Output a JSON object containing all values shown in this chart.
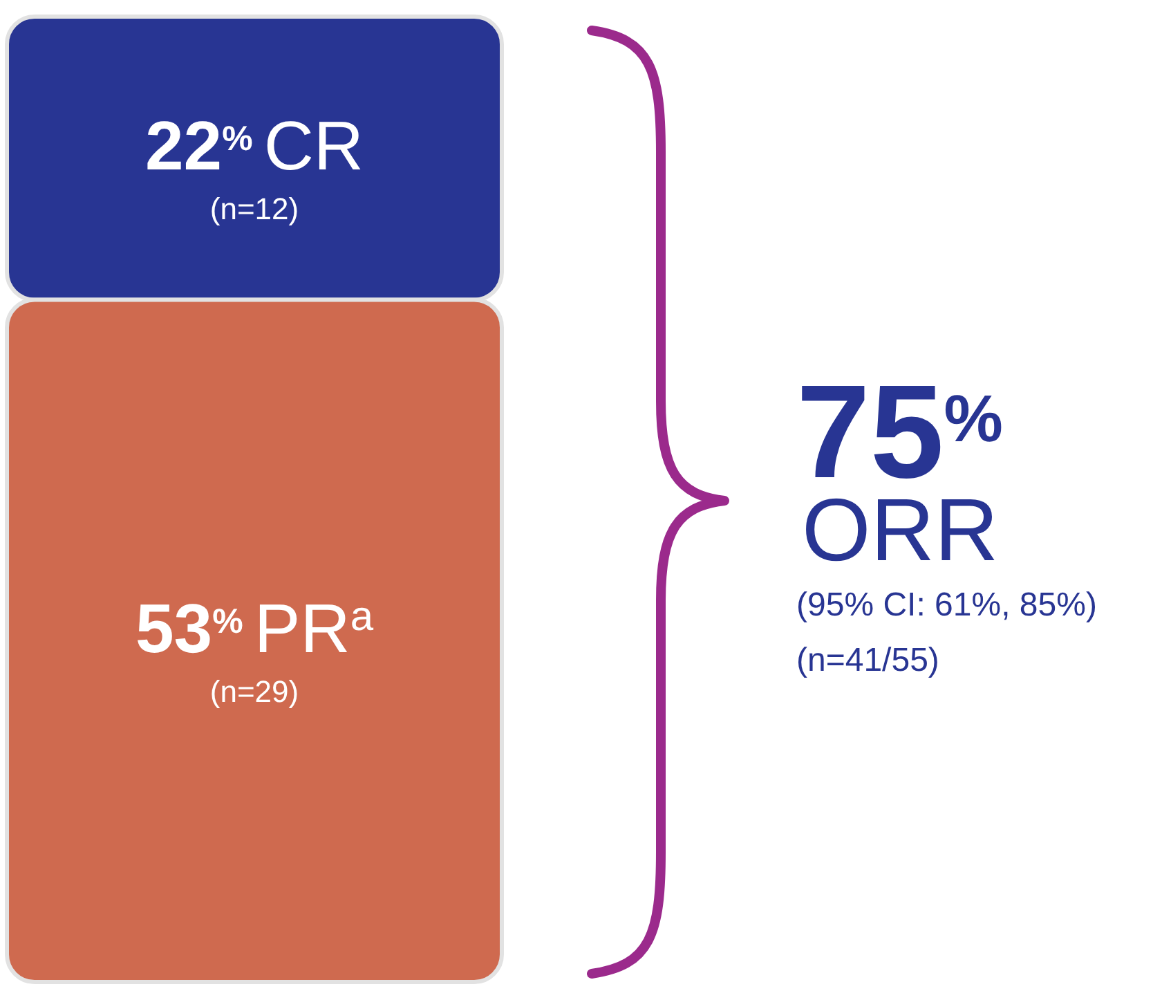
{
  "chart_data": {
    "type": "bar",
    "stacked": true,
    "categories": [
      null
    ],
    "ylim": [
      0,
      75
    ],
    "tick_labels": false,
    "series": [
      {
        "name": "PR$^{a}$",
        "color": "#cf6a4f",
        "values": [
          53
        ],
        "value_labels": [
          "53$^{%}$"
        ]
      },
      {
        "name": "CR",
        "color": "#283593",
        "values": [
          22
        ],
        "value_labels": [
          "22$^{%}$"
        ]
      }
    ],
    "totals": [
      "75$^{%}$"
    ],
    "annotations": [
      "(n=29)",
      "(n=12)",
      "ORR",
      "(95% CI: 61%, 85%)",
      "(n=41/55)"
    ]
  }
}
